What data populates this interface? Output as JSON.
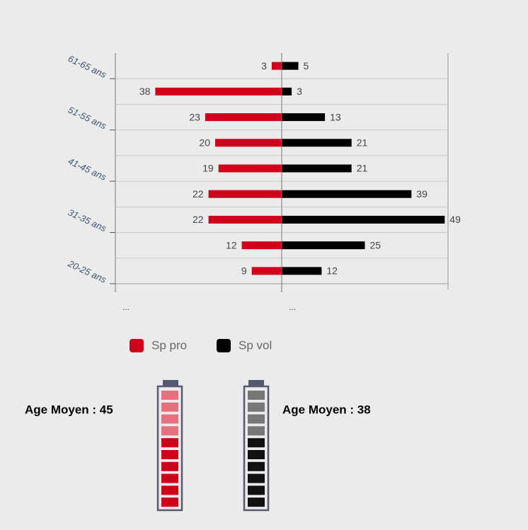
{
  "chart_data": {
    "type": "pyramid",
    "categories": [
      "61-65 ans",
      null,
      "51-55 ans",
      null,
      "41-45 ans",
      null,
      "31-35 ans",
      null,
      "20-25 ans"
    ],
    "series": [
      {
        "name": "Sp pro",
        "color": "#d0021b",
        "values": [
          3,
          38,
          23,
          20,
          19,
          22,
          22,
          12,
          9
        ]
      },
      {
        "name": "Sp vol",
        "color": "#000000",
        "values": [
          5,
          3,
          13,
          21,
          21,
          39,
          49,
          25,
          12
        ]
      }
    ],
    "xlim": [
      -50,
      50
    ],
    "xticks": [
      {
        "value": -50,
        "label": "..."
      },
      {
        "value": 0,
        "label": "..."
      }
    ],
    "grid": true,
    "averages": [
      "Age Moyen : 45",
      "Age Moyen : 38"
    ]
  }
}
